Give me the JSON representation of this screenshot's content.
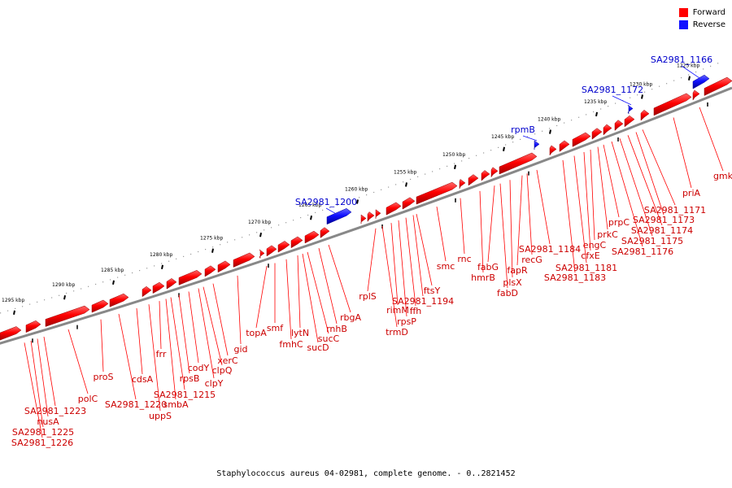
{
  "legend": {
    "forward": {
      "label": "Forward",
      "color": "#ff0000"
    },
    "reverse": {
      "label": "Reverse",
      "color": "#1010ff"
    }
  },
  "footer": "Staphylococcus aureus 04-02981, complete genome. - 0..2821452",
  "ticks": [
    {
      "label": "1225 kbp"
    },
    {
      "label": "1230 kbp"
    },
    {
      "label": "1235 kbp"
    },
    {
      "label": "1240 kbp"
    },
    {
      "label": "1245 kbp"
    },
    {
      "label": "1250 kbp"
    },
    {
      "label": "1255 kbp"
    },
    {
      "label": "1260 kbp"
    },
    {
      "label": "1265 kbp"
    },
    {
      "label": "1270 kbp"
    },
    {
      "label": "1275 kbp"
    },
    {
      "label": "1280 kbp"
    },
    {
      "label": "1285 kbp"
    },
    {
      "label": "1290 kbp"
    },
    {
      "label": "1295 kbp"
    }
  ],
  "reverse_genes": [
    "SA2981_1166",
    "SA2981_1172",
    "rpmB",
    "SA2981_1200"
  ],
  "forward_genes": [
    "gmk",
    "priA",
    "SA2981_1171",
    "SA2981_1173",
    "SA2981_1174",
    "SA2981_1175",
    "SA2981_1176",
    "prpC",
    "prkC",
    "engC",
    "cfxE",
    "SA2981_1181",
    "SA2981_1183",
    "SA2981_1184",
    "recG",
    "fapR",
    "plsX",
    "fabD",
    "fabG",
    "hmrB",
    "rnc",
    "smc",
    "ftsY",
    "SA2981_1194",
    "ffh",
    "rpsP",
    "rimM",
    "trmD",
    "rplS",
    "rbgA",
    "rnhB",
    "sucC",
    "sucD",
    "lytN",
    "fmhC",
    "smf",
    "topA",
    "gid",
    "xerC",
    "clpQ",
    "clpY",
    "codY",
    "rpsB",
    "SA2981_1215",
    "smbA",
    "frr",
    "uppS",
    "cdsA",
    "SA2981_1220",
    "proS",
    "polC",
    "SA2981_1223",
    "nusA",
    "SA2981_1225",
    "SA2981_1226"
  ]
}
